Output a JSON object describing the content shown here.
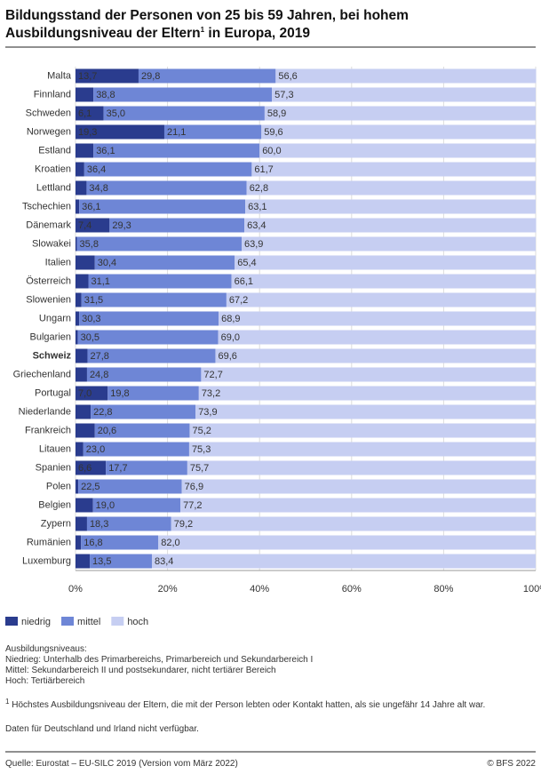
{
  "chart_data": {
    "type": "stacked-barh",
    "title": [
      "Bildungsstand der Personen von 25 bis 59 Jahren, bei hohem",
      "Ausbildungsniveau der Eltern",
      "1",
      " in Europa, 2019"
    ],
    "categories": [
      "Malta",
      "Finnland",
      "Schweden",
      "Norwegen",
      "Estland",
      "Kroatien",
      "Lettland",
      "Tschechien",
      "Dänemark",
      "Slowakei",
      "Italien",
      "Österreich",
      "Slowenien",
      "Ungarn",
      "Bulgarien",
      "Schweiz",
      "Griechenland",
      "Portugal",
      "Niederlande",
      "Frankreich",
      "Litauen",
      "Spanien",
      "Polen",
      "Belgien",
      "Zypern",
      "Rumänien",
      "Luxemburg"
    ],
    "highlight_category": "Schweiz",
    "series": [
      {
        "name": "niedrig",
        "color": "#2a3c8e",
        "label_color": "#ffffff",
        "values": [
          13.7,
          3.9,
          6.1,
          19.3,
          3.9,
          1.9,
          2.4,
          0.8,
          7.4,
          0.3,
          4.2,
          2.8,
          1.3,
          0.8,
          0.5,
          2.6,
          2.5,
          7.0,
          3.3,
          4.2,
          1.7,
          6.6,
          0.6,
          3.8,
          2.5,
          1.2,
          3.1
        ],
        "value_labels": [
          "13,7",
          null,
          "6,1",
          "19,3",
          null,
          null,
          null,
          null,
          "7,4",
          null,
          null,
          null,
          null,
          null,
          null,
          null,
          null,
          "7,0",
          null,
          null,
          null,
          "6,6",
          null,
          null,
          null,
          null,
          null
        ]
      },
      {
        "name": "mittel",
        "color": "#6e86d6",
        "label_color": "#ffffff",
        "values": [
          29.8,
          38.8,
          35.0,
          21.1,
          36.1,
          36.4,
          34.8,
          36.1,
          29.3,
          35.8,
          30.4,
          31.1,
          31.5,
          30.3,
          30.5,
          27.8,
          24.8,
          19.8,
          22.8,
          20.6,
          23.0,
          17.7,
          22.5,
          19.0,
          18.3,
          16.8,
          13.5
        ],
        "value_labels": [
          "29,8",
          "38,8",
          "35,0",
          "21,1",
          "36,1",
          "36,4",
          "34,8",
          "36,1",
          "29,3",
          "35,8",
          "30,4",
          "31,1",
          "31,5",
          "30,3",
          "30,5",
          "27,8",
          "24,8",
          "19,8",
          "22,8",
          "20,6",
          "23,0",
          "17,7",
          "22,5",
          "19,0",
          "18,3",
          "16,8",
          "13,5"
        ]
      },
      {
        "name": "hoch",
        "color": "#c6cef2",
        "label_color": "#333333",
        "values": [
          56.6,
          57.3,
          58.9,
          59.6,
          60.0,
          61.7,
          62.8,
          63.1,
          63.4,
          63.9,
          65.4,
          66.1,
          67.2,
          68.9,
          69.0,
          69.6,
          72.7,
          73.2,
          73.9,
          75.2,
          75.3,
          75.7,
          76.9,
          77.2,
          79.2,
          82.0,
          83.4
        ],
        "value_labels": [
          "56,6",
          "57,3",
          "58,9",
          "59,6",
          "60,0",
          "61,7",
          "62,8",
          "63,1",
          "63,4",
          "63,9",
          "65,4",
          "66,1",
          "67,2",
          "68,9",
          "69,0",
          "69,6",
          "72,7",
          "73,2",
          "73,9",
          "75,2",
          "75,3",
          "75,7",
          "76,9",
          "77,2",
          "79,2",
          "82,0",
          "83,4"
        ]
      }
    ],
    "xlim": [
      0,
      100
    ],
    "xticks": [
      {
        "value": 0,
        "label": "0%"
      },
      {
        "value": 20,
        "label": "20%"
      },
      {
        "value": 40,
        "label": "40%"
      },
      {
        "value": 60,
        "label": "60%"
      },
      {
        "value": 80,
        "label": "80%"
      },
      {
        "value": 100,
        "label": "100%"
      }
    ],
    "grid": true,
    "legend": "bottom-left",
    "notes": [
      "Ausbildungsniveaus:",
      "Niedrieg: Unterhalb des Primarbereichs, Primarbereich und Sekundarbereich I",
      "Mittel: Sekundarbereich II und postsekundarer, nicht tertiärer Bereich",
      "Hoch: Tertiärbereich"
    ],
    "footnote": [
      "1",
      " Höchstes Ausbildungsniveau der Eltern, die mit der Person lebten oder Kontakt hatten, als sie ungefähr 14 Jahre alt war."
    ],
    "remark": "Daten für Deutschland und Irland nicht verfügbar.",
    "source": "Quelle: Eurostat – EU-SILC 2019 (Version vom März 2022)",
    "copyright": "© BFS 2022"
  }
}
